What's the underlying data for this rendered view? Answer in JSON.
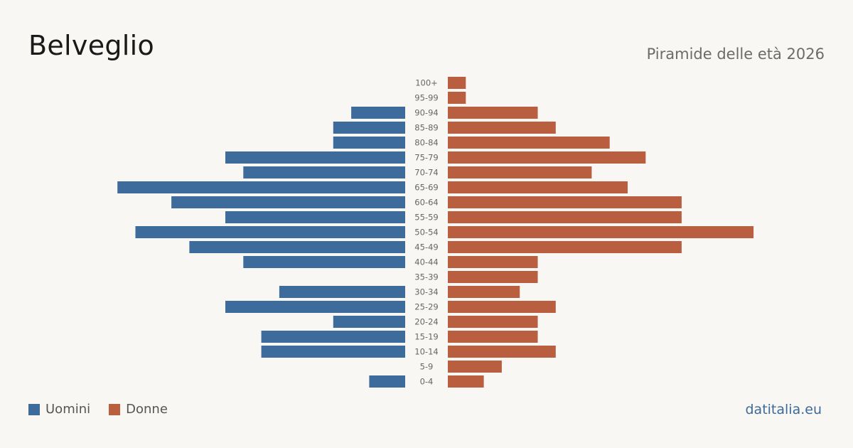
{
  "header": {
    "title": "Belveglio",
    "subtitle": "Piramide delle età 2026"
  },
  "legend": {
    "men_label": "Uomini",
    "women_label": "Donne"
  },
  "source": "datitalia.eu",
  "colors": {
    "men": "#3d6b9b",
    "women": "#b95e3e",
    "background": "#f9f7f3"
  },
  "chart_data": {
    "type": "bar",
    "orientation": "horizontal-pyramid",
    "categories": [
      "100+",
      "95-99",
      "90-94",
      "85-89",
      "80-84",
      "75-79",
      "70-74",
      "65-69",
      "60-64",
      "55-59",
      "50-54",
      "45-49",
      "40-44",
      "35-39",
      "30-34",
      "25-29",
      "20-24",
      "15-19",
      "10-14",
      "5-9",
      "0-4"
    ],
    "series": [
      {
        "name": "Uomini",
        "values": [
          0,
          0,
          3,
          4,
          4,
          10,
          9,
          16,
          13,
          10,
          15,
          12,
          9,
          0,
          7,
          10,
          4,
          8,
          8,
          0,
          2
        ]
      },
      {
        "name": "Donne",
        "values": [
          1,
          1,
          5,
          6,
          9,
          11,
          8,
          10,
          13,
          13,
          17,
          13,
          5,
          5,
          4,
          6,
          5,
          5,
          6,
          3,
          2
        ]
      }
    ],
    "grid": false,
    "legend_position": "bottom-left"
  }
}
